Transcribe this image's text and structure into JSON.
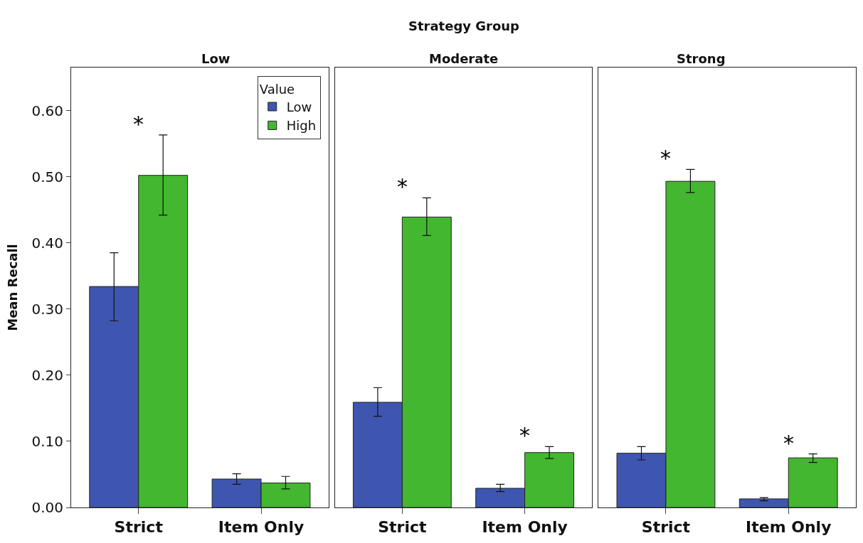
{
  "chart_data": [
    {
      "type": "bar",
      "title": "Low",
      "ylabel": "Mean Recall",
      "categories": [
        "Strict",
        "Item Only"
      ],
      "legend_title": "Value",
      "legend": "top right",
      "ylim": [
        0,
        0.665
      ],
      "yticks": [
        {
          "value": 0,
          "label": "0.00"
        },
        {
          "value": 0.1,
          "label": "0.10"
        },
        {
          "value": 0.2,
          "label": "0.20"
        },
        {
          "value": 0.3,
          "label": "0.30"
        },
        {
          "value": 0.4,
          "label": "0.40"
        },
        {
          "value": 0.5,
          "label": "0.50"
        },
        {
          "value": 0.6,
          "label": "0.60"
        }
      ],
      "series": [
        {
          "name": "Low",
          "color": "#3f56b0",
          "values": [
            0.334,
            0.043
          ],
          "errors": [
            [
              0.282,
              0.385
            ],
            [
              0.035,
              0.051
            ]
          ]
        },
        {
          "name": "High",
          "color": "#43b72f",
          "values": [
            0.502,
            0.037
          ],
          "errors": [
            [
              0.442,
              0.563
            ],
            [
              0.028,
              0.047
            ]
          ]
        }
      ],
      "annotations": [
        {
          "text": "*",
          "x": "Strict",
          "y": 0.502
        }
      ]
    },
    {
      "type": "bar",
      "title": "Moderate",
      "categories": [
        "Strict",
        "Item Only"
      ],
      "tick_labels": "x",
      "ylim": [
        0,
        0.665
      ],
      "series": [
        {
          "color": "#3f56b0",
          "values": [
            0.159,
            0.029
          ],
          "errors": [
            [
              0.138,
              0.181
            ],
            [
              0.024,
              0.035
            ]
          ]
        },
        {
          "color": "#43b72f",
          "values": [
            0.439,
            0.083
          ],
          "errors": [
            [
              0.411,
              0.468
            ],
            [
              0.074,
              0.092
            ]
          ]
        }
      ],
      "annotations": [
        "Strategy Group",
        {
          "text": "*",
          "x": "Strict",
          "y": 0.439
        },
        {
          "text": "*",
          "x": "Item Only",
          "y": 0.083
        }
      ]
    },
    {
      "type": "bar",
      "title": "Strong",
      "categories": [
        "Strict",
        "Item Only"
      ],
      "tick_labels": "x",
      "ylim": [
        0,
        0.665
      ],
      "series": [
        {
          "color": "#3f56b0",
          "values": [
            0.082,
            0.013
          ],
          "errors": [
            [
              0.072,
              0.092
            ],
            [
              0.01,
              0.015
            ]
          ]
        },
        {
          "color": "#43b72f",
          "values": [
            0.493,
            0.075
          ],
          "errors": [
            [
              0.476,
              0.511
            ],
            [
              0.068,
              0.081
            ]
          ]
        }
      ],
      "annotations": [
        {
          "text": "*",
          "x": "Strict",
          "y": 0.493
        },
        {
          "text": "*",
          "x": "Item Only",
          "y": 0.075
        }
      ]
    }
  ]
}
